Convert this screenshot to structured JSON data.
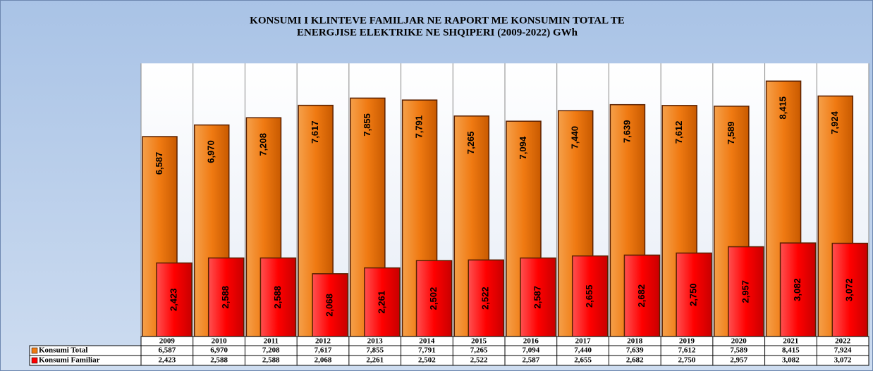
{
  "chart_data": {
    "type": "bar",
    "title": [
      "KONSUMI I KLINTEVE FAMILJAR NE RAPORT ME KONSUMIN TOTAL TE",
      "ENERGJISE ELEKTRIKE NE SHQIPERI (2009-2022) GWh"
    ],
    "categories": [
      "2009",
      "2010",
      "2011",
      "2012",
      "2013",
      "2014",
      "2015",
      "2016",
      "2017",
      "2018",
      "2019",
      "2020",
      "2021",
      "2022"
    ],
    "series": [
      {
        "name": "Konsumi Total",
        "color": "#f07a12",
        "values": [
          6587,
          6970,
          7208,
          7617,
          7855,
          7791,
          7265,
          7094,
          7440,
          7639,
          7612,
          7589,
          8415,
          7924
        ],
        "value_labels": [
          "6,587",
          "6,970",
          "7,208",
          "7,617",
          "7,855",
          "7,791",
          "7,265",
          "7,094",
          "7,440",
          "7,639",
          "7,612",
          "7,589",
          "8,415",
          "7,924"
        ]
      },
      {
        "name": "Konsumi Familiar",
        "color": "#ff0000",
        "values": [
          2423,
          2588,
          2588,
          2068,
          2261,
          2502,
          2522,
          2587,
          2655,
          2682,
          2750,
          2957,
          3082,
          3072
        ],
        "value_labels": [
          "2,423",
          "2,588",
          "2,588",
          "2,068",
          "2,261",
          "2,502",
          "2,522",
          "2,587",
          "2,655",
          "2,682",
          "2,750",
          "2,957",
          "3,082",
          "3,072"
        ]
      }
    ],
    "ylim": [
      0,
      9000
    ]
  }
}
